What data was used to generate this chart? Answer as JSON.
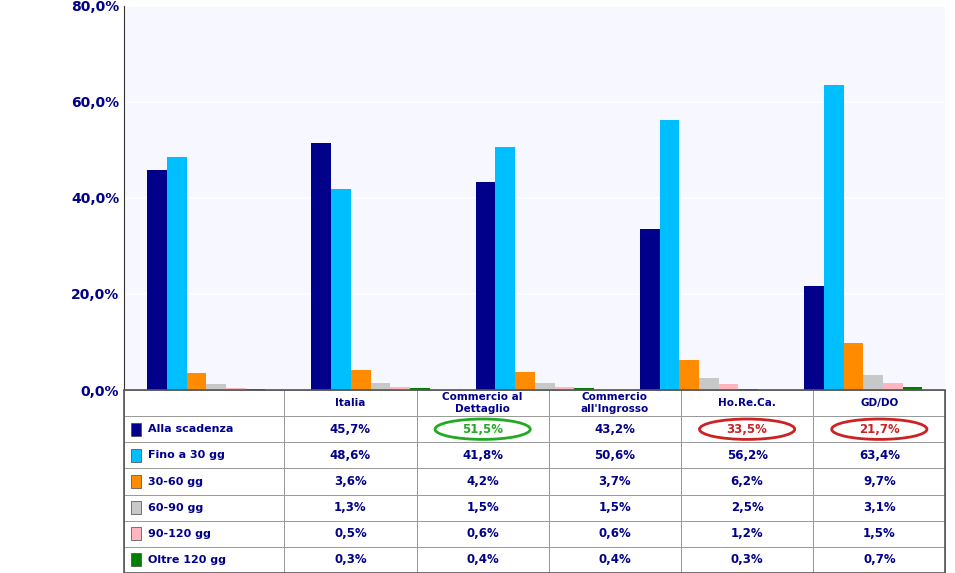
{
  "categories": [
    "Italia",
    "Commercio al\nDettaglio",
    "Commercio\nall'Ingrosso",
    "Ho.Re.Ca.",
    "GD/DO"
  ],
  "cat_header": [
    "Italia",
    "Commercio al\nDettaglio",
    "Commercio\nall'Ingrosso",
    "Ho.Re.Ca.",
    "GD/DO"
  ],
  "series": [
    {
      "label": "Alla scadenza",
      "color": "#00008B",
      "values": [
        45.7,
        51.5,
        43.2,
        33.5,
        21.7
      ]
    },
    {
      "label": "Fino a 30 gg",
      "color": "#00BFFF",
      "values": [
        48.6,
        41.8,
        50.6,
        56.2,
        63.4
      ]
    },
    {
      "label": "30-60 gg",
      "color": "#FF8C00",
      "values": [
        3.6,
        4.2,
        3.7,
        6.2,
        9.7
      ]
    },
    {
      "label": "60-90 gg",
      "color": "#C8C8C8",
      "values": [
        1.3,
        1.5,
        1.5,
        2.5,
        3.1
      ]
    },
    {
      "label": "90-120 gg",
      "color": "#FFB6C1",
      "values": [
        0.5,
        0.6,
        0.6,
        1.2,
        1.5
      ]
    },
    {
      "label": "Oltre 120 gg",
      "color": "#008000",
      "values": [
        0.3,
        0.4,
        0.4,
        0.3,
        0.7
      ]
    }
  ],
  "table_values": [
    [
      "45,7%",
      "51,5%",
      "43,2%",
      "33,5%",
      "21,7%"
    ],
    [
      "48,6%",
      "41,8%",
      "50,6%",
      "56,2%",
      "63,4%"
    ],
    [
      "3,6%",
      "4,2%",
      "3,7%",
      "6,2%",
      "9,7%"
    ],
    [
      "1,3%",
      "1,5%",
      "1,5%",
      "2,5%",
      "3,1%"
    ],
    [
      "0,5%",
      "0,6%",
      "0,6%",
      "1,2%",
      "1,5%"
    ],
    [
      "0,3%",
      "0,4%",
      "0,4%",
      "0,3%",
      "0,7%"
    ]
  ],
  "ylim": [
    0,
    80
  ],
  "yticks": [
    0,
    20,
    40,
    60,
    80
  ],
  "bar_width": 0.12,
  "text_color": "#00008B",
  "grid_color": "#FFFFFF",
  "border_color": "#999999"
}
